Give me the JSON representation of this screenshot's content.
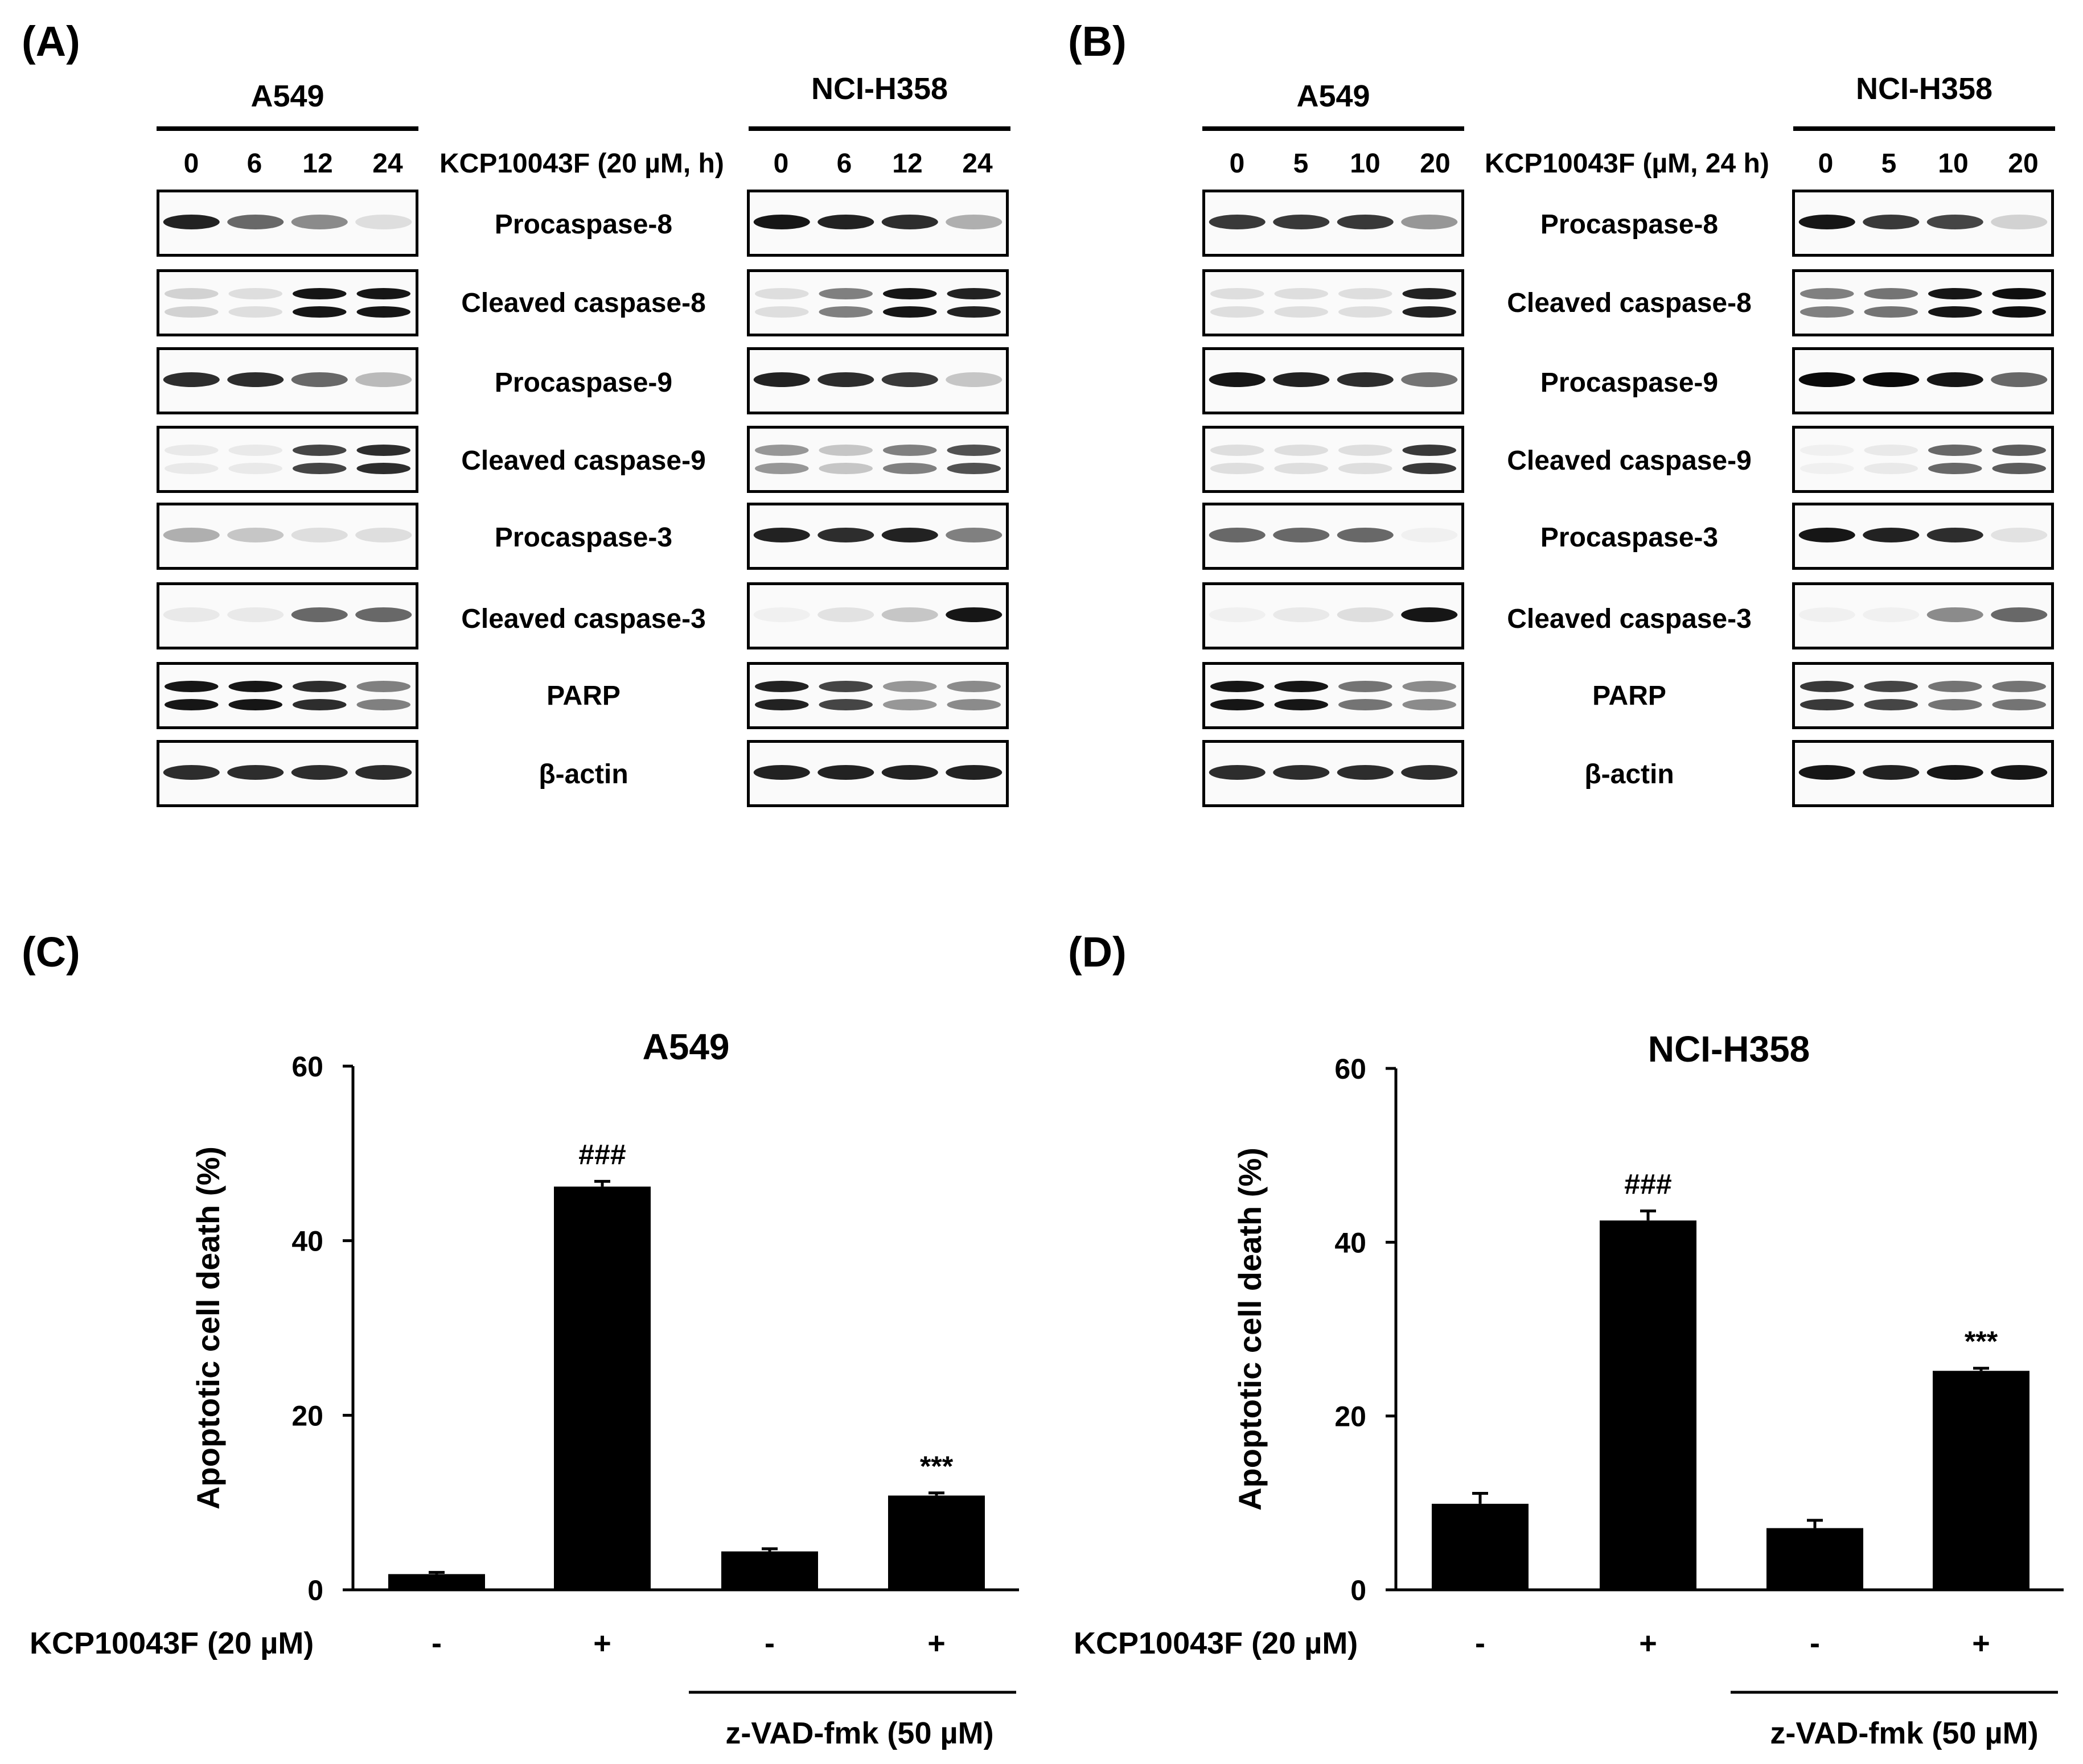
{
  "panels": {
    "A": {
      "label": "(A)",
      "left_cell": "A549",
      "right_cell": "NCI-H358",
      "treatment": "KCP10043F (20 µM, h)",
      "timepoints": [
        "0",
        "6",
        "12",
        "24"
      ]
    },
    "B": {
      "label": "(B)",
      "left_cell": "A549",
      "right_cell": "NCI-H358",
      "treatment": "KCP10043F (µM, 24 h)",
      "timepoints": [
        "0",
        "5",
        "10",
        "20"
      ]
    },
    "C": {
      "label": "(C)"
    },
    "D": {
      "label": "(D)"
    }
  },
  "proteins": [
    "Procaspase-8",
    "Cleaved caspase-8",
    "Procaspase-9",
    "Cleaved caspase-9",
    "Procaspase-3",
    "Cleaved caspase-3",
    "PARP",
    "β-actin"
  ],
  "blot_intensities": {
    "A_left": [
      [
        0.9,
        0.6,
        0.45,
        0.1
      ],
      [
        0.15,
        0.1,
        0.95,
        0.95
      ],
      [
        0.85,
        0.85,
        0.6,
        0.25
      ],
      [
        0.05,
        0.05,
        0.75,
        0.85
      ],
      [
        0.3,
        0.2,
        0.1,
        0.1
      ],
      [
        0.05,
        0.05,
        0.6,
        0.6
      ],
      [
        0.95,
        0.95,
        0.85,
        0.5
      ],
      [
        0.85,
        0.85,
        0.85,
        0.85
      ]
    ],
    "A_right": [
      [
        0.95,
        0.9,
        0.85,
        0.3
      ],
      [
        0.1,
        0.5,
        0.95,
        0.9
      ],
      [
        0.9,
        0.85,
        0.8,
        0.2
      ],
      [
        0.4,
        0.2,
        0.5,
        0.7
      ],
      [
        0.9,
        0.85,
        0.9,
        0.5
      ],
      [
        0.02,
        0.08,
        0.2,
        0.95
      ],
      [
        0.9,
        0.75,
        0.4,
        0.45
      ],
      [
        0.9,
        0.9,
        0.9,
        0.9
      ]
    ],
    "B_left": [
      [
        0.8,
        0.8,
        0.8,
        0.4
      ],
      [
        0.1,
        0.1,
        0.1,
        0.9
      ],
      [
        0.95,
        0.9,
        0.85,
        0.55
      ],
      [
        0.1,
        0.1,
        0.1,
        0.8
      ],
      [
        0.6,
        0.6,
        0.6,
        0.02
      ],
      [
        0.02,
        0.05,
        0.1,
        0.95
      ],
      [
        0.95,
        0.95,
        0.55,
        0.45
      ],
      [
        0.85,
        0.85,
        0.85,
        0.85
      ]
    ],
    "B_right": [
      [
        0.95,
        0.8,
        0.75,
        0.15
      ],
      [
        0.5,
        0.55,
        0.95,
        0.98
      ],
      [
        1.0,
        1.0,
        0.95,
        0.6
      ],
      [
        0.02,
        0.05,
        0.6,
        0.65
      ],
      [
        0.95,
        0.9,
        0.85,
        0.08
      ],
      [
        0.02,
        0.02,
        0.45,
        0.6
      ],
      [
        0.8,
        0.75,
        0.55,
        0.55
      ],
      [
        0.95,
        0.9,
        0.95,
        0.95
      ]
    ]
  },
  "chart_data": [
    {
      "type": "bar",
      "title": "A549",
      "ylabel": "Apoptotic cell death (%)",
      "ylim": [
        0,
        60
      ],
      "yticks": [
        "0",
        "20",
        "40",
        "60"
      ],
      "categories": [
        "-",
        "+",
        "-",
        "+"
      ],
      "values": [
        1.8,
        46.2,
        4.4,
        10.8
      ],
      "errors": [
        0.2,
        0.6,
        0.3,
        0.3
      ],
      "annotations": [
        "",
        "###",
        "",
        "***"
      ],
      "row_label": "KCP10043F (20 µM)",
      "group_label": "z-VAD-fmk (50 µM)"
    },
    {
      "type": "bar",
      "title": "NCI-H358",
      "ylabel": "Apoptotic cell death (%)",
      "ylim": [
        0,
        60
      ],
      "yticks": [
        "0",
        "20",
        "40",
        "60"
      ],
      "categories": [
        "-",
        "+",
        "-",
        "+"
      ],
      "values": [
        9.9,
        42.5,
        7.1,
        25.2
      ],
      "errors": [
        1.2,
        1.1,
        0.9,
        0.3
      ],
      "annotations": [
        "",
        "###",
        "",
        "***"
      ],
      "row_label": "KCP10043F (20 µM)",
      "group_label": "z-VAD-fmk (50 µM)"
    }
  ]
}
